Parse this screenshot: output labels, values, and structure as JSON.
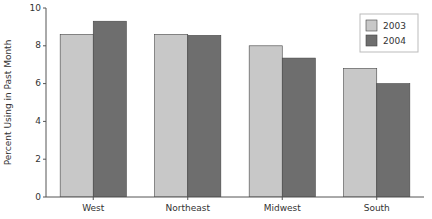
{
  "chart_data": {
    "type": "bar",
    "categories": [
      "West",
      "Northeast",
      "Midwest",
      "South"
    ],
    "series": [
      {
        "name": "2003",
        "color": "#c8c8c8",
        "values": [
          8.6,
          8.6,
          8.0,
          6.8
        ]
      },
      {
        "name": "2004",
        "color": "#6e6e6e",
        "values": [
          9.3,
          8.55,
          7.35,
          6.0
        ]
      }
    ],
    "ylabel": "Percent Using in Past Month",
    "ylim": [
      0,
      10
    ],
    "yticks": [
      0,
      2,
      4,
      6,
      8,
      10
    ],
    "grid": false,
    "legend": "upper right"
  }
}
